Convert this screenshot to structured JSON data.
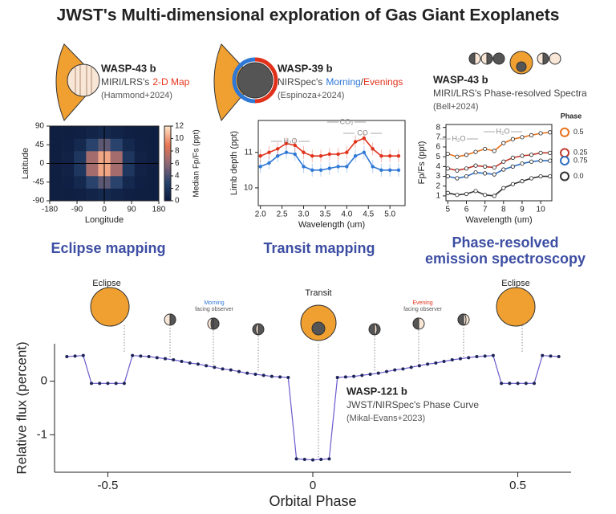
{
  "title": "JWST's Multi-dimensional exploration of Gas Giant Exoplanets",
  "chart_data": [
    {
      "type": "heatmap",
      "title": "WASP-43 b",
      "subtitle": "MIRI/LRS's",
      "highlight": {
        "text": "2-D Map",
        "color": "#e8341c"
      },
      "citation": "(Hammond+2024)",
      "section": "Eclipse mapping",
      "x": [
        -160,
        -120,
        -80,
        -40,
        0,
        40,
        80,
        120,
        160
      ],
      "y": [
        -75,
        -45,
        -15,
        15,
        45,
        75
      ],
      "z": [
        [
          0.5,
          0.5,
          0.6,
          0.9,
          1.2,
          0.9,
          0.6,
          0.5,
          0.5
        ],
        [
          0.5,
          0.6,
          1.2,
          3.1,
          4.6,
          3.1,
          1.2,
          0.6,
          0.5
        ],
        [
          0.5,
          0.7,
          2.2,
          6.8,
          10.3,
          6.8,
          2.2,
          0.7,
          0.5
        ],
        [
          0.5,
          0.7,
          2.2,
          6.8,
          10.3,
          6.8,
          2.2,
          0.7,
          0.5
        ],
        [
          0.5,
          0.6,
          1.2,
          3.1,
          4.6,
          3.1,
          1.2,
          0.6,
          0.5
        ],
        [
          0.5,
          0.5,
          0.6,
          0.9,
          1.2,
          0.9,
          0.6,
          0.5,
          0.5
        ]
      ],
      "xlim": [
        -180,
        180
      ],
      "ylim": [
        -90,
        90
      ],
      "xticks": [
        -180,
        -90,
        0,
        90,
        180
      ],
      "yticks": [
        -90,
        -45,
        0,
        45,
        90
      ],
      "xlabel": "Longitude",
      "ylabel": "Latitude",
      "colorbar": {
        "label": "Median Fp/Fs (ppt)",
        "lim": [
          0,
          12
        ],
        "ticks": [
          0,
          2,
          4,
          6,
          8,
          10,
          12
        ]
      }
    },
    {
      "type": "line",
      "title": "WASP-39 b",
      "subtitle": "NIRSpec's",
      "separator": "/",
      "citation": "(Espinoza+2024)",
      "section": "Transit mapping",
      "x": [
        2.0,
        2.2,
        2.4,
        2.6,
        2.8,
        3.0,
        3.2,
        3.4,
        3.6,
        3.8,
        4.0,
        4.2,
        4.4,
        4.6,
        4.8,
        5.0,
        5.2
      ],
      "series": [
        {
          "name": "Morning",
          "color": "#2f78d6",
          "values": [
            10.6,
            10.7,
            10.9,
            11.0,
            10.95,
            10.6,
            10.5,
            10.5,
            10.55,
            10.6,
            10.6,
            10.9,
            11.0,
            10.6,
            10.5,
            10.5,
            10.5
          ]
        },
        {
          "name": "Evenings",
          "color": "#e0321b",
          "values": [
            10.9,
            11.0,
            11.1,
            11.25,
            11.2,
            11.0,
            10.9,
            10.9,
            10.95,
            10.95,
            11.0,
            11.3,
            11.4,
            11.1,
            10.9,
            10.9,
            10.9
          ]
        }
      ],
      "xlim": [
        1.95,
        5.35
      ],
      "ylim": [
        9.5,
        11.9
      ],
      "xticks": [
        {
          "value": 2,
          "label": "2.0"
        },
        {
          "value": 2.5,
          "label": "2.5"
        },
        {
          "value": 3,
          "label": "3.0"
        },
        {
          "value": 3.5,
          "label": "3.5"
        },
        {
          "value": 4,
          "label": "4.0"
        },
        {
          "value": 4.5,
          "label": "4.5"
        },
        {
          "value": 5,
          "label": "5.0"
        }
      ],
      "yticks": [
        10,
        11
      ],
      "xlabel": "Wavelength (um)",
      "ylabel": "Limb depth (ppt)",
      "annotations": [
        "H₂O",
        "CO₂",
        "CO"
      ]
    },
    {
      "type": "line",
      "title": "WASP-43 b",
      "subtitle": "MIRI/LRS's Phase-resolved Spectra",
      "citation": "(Bell+2024)",
      "section": "Phase-resolved emission spectroscopy",
      "x": [
        5,
        5.5,
        6,
        6.5,
        7,
        7.5,
        8,
        8.5,
        9,
        9.5,
        10,
        10.5
      ],
      "legend_title": "Phase",
      "series": [
        {
          "name": "0.5",
          "color": "#e8711b",
          "values": [
            5.3,
            5.0,
            5.2,
            5.5,
            5.8,
            5.6,
            6.4,
            6.8,
            7.0,
            7.2,
            7.4,
            7.5
          ]
        },
        {
          "name": "0.25",
          "color": "#c0392b",
          "values": [
            3.8,
            3.6,
            3.8,
            4.1,
            4.0,
            3.9,
            4.5,
            4.9,
            5.1,
            5.2,
            5.4,
            5.4
          ]
        },
        {
          "name": "0.75",
          "color": "#2e6fbf",
          "values": [
            3.0,
            2.8,
            3.0,
            3.4,
            3.3,
            3.2,
            3.7,
            4.0,
            4.3,
            4.5,
            4.6,
            4.6
          ]
        },
        {
          "name": "0.0",
          "color": "#333333",
          "values": [
            1.3,
            1.1,
            1.2,
            1.5,
            1.1,
            1.0,
            1.8,
            2.2,
            2.5,
            2.8,
            3.0,
            3.0
          ]
        }
      ],
      "xlim": [
        4.9,
        10.6
      ],
      "ylim": [
        0.5,
        8.3
      ],
      "xticks": [
        5,
        6,
        7,
        8,
        9,
        10
      ],
      "yticks": [
        1,
        2,
        3,
        4,
        5,
        6,
        7,
        8
      ],
      "xlabel": "Wavelength (um)",
      "ylabel": "Fp/Fs (ppt)",
      "annotations": [
        "H₂O",
        "H₂O"
      ]
    },
    {
      "type": "scatter",
      "title": "WASP-121 b",
      "subtitle": "JWST/NIRSpec's Phase Curve",
      "citation": "(Mikal-Evans+2023)",
      "x": [
        -0.6,
        -0.58,
        -0.56,
        -0.54,
        -0.52,
        -0.5,
        -0.48,
        -0.46,
        -0.44,
        -0.42,
        -0.4,
        -0.38,
        -0.36,
        -0.34,
        -0.32,
        -0.3,
        -0.28,
        -0.26,
        -0.24,
        -0.22,
        -0.2,
        -0.18,
        -0.16,
        -0.14,
        -0.12,
        -0.1,
        -0.08,
        -0.06,
        -0.04,
        -0.02,
        0,
        0.02,
        0.04,
        0.06,
        0.08,
        0.1,
        0.12,
        0.14,
        0.16,
        0.18,
        0.2,
        0.22,
        0.24,
        0.26,
        0.28,
        0.3,
        0.32,
        0.34,
        0.36,
        0.38,
        0.4,
        0.42,
        0.44,
        0.46,
        0.48,
        0.5,
        0.52,
        0.54,
        0.56,
        0.58,
        0.6
      ],
      "values": [
        0.46,
        0.47,
        0.48,
        -0.04,
        -0.04,
        -0.04,
        -0.04,
        -0.04,
        0.48,
        0.47,
        0.46,
        0.44,
        0.42,
        0.4,
        0.37,
        0.34,
        0.32,
        0.29,
        0.26,
        0.23,
        0.21,
        0.18,
        0.15,
        0.13,
        0.11,
        0.09,
        0.08,
        0.07,
        -1.45,
        -1.46,
        -1.47,
        -1.46,
        -1.45,
        0.07,
        0.08,
        0.09,
        0.11,
        0.13,
        0.15,
        0.18,
        0.21,
        0.23,
        0.26,
        0.29,
        0.32,
        0.34,
        0.37,
        0.4,
        0.42,
        0.44,
        0.46,
        0.47,
        0.48,
        -0.04,
        -0.04,
        -0.04,
        -0.04,
        -0.04,
        0.48,
        0.47,
        0.46
      ],
      "color": "#1c2456",
      "line_color": "#6a5acd",
      "xlim": [
        -0.63,
        0.63
      ],
      "ylim": [
        -1.7,
        0.7
      ],
      "xticks": [
        -0.5,
        0,
        0.5
      ],
      "yticks": [
        -1,
        0
      ],
      "xlabel": "Orbital Phase",
      "ylabel": "Relative flux (percent)",
      "annotations": [
        "Eclipse",
        "Morning",
        "facing observer",
        "Transit",
        "Evening",
        "facing observer",
        "Eclipse"
      ]
    }
  ]
}
